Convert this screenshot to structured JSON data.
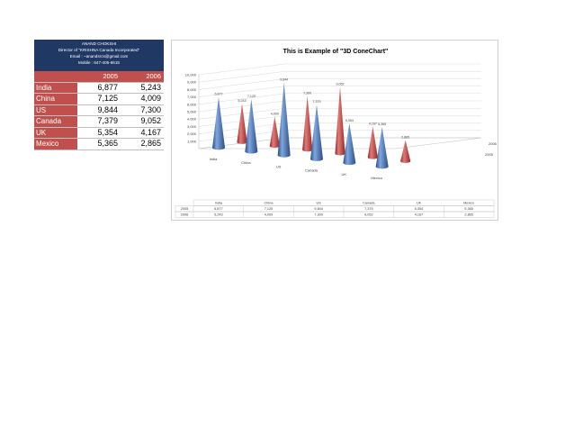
{
  "info": {
    "name": "ANAND CHOKSHI",
    "line2": "Director of \"KRISHNA Canada Incorporated\"",
    "line3": "Email : ~anandsrcs@gmail.com",
    "line4": "Mobile : 647-405-6615"
  },
  "table": {
    "headers": [
      "2005",
      "2006"
    ],
    "rows": [
      {
        "country": "India",
        "v2005": "6,877",
        "v2006": "5,243"
      },
      {
        "country": "China",
        "v2005": "7,125",
        "v2006": "4,009"
      },
      {
        "country": "US",
        "v2005": "9,844",
        "v2006": "7,300"
      },
      {
        "country": "Canada",
        "v2005": "7,379",
        "v2006": "9,052"
      },
      {
        "country": "UK",
        "v2005": "5,354",
        "v2006": "4,167"
      },
      {
        "country": "Mexico",
        "v2005": "5,365",
        "v2006": "2,865"
      }
    ]
  },
  "colors": {
    "series_2005": "#4f81bd",
    "series_2006": "#c0504d",
    "header_bg": "#c0504d",
    "info_bg": "#1f3864"
  },
  "chart_data": {
    "type": "bar",
    "subtype": "3d-cone",
    "title": "This is Example of \"3D ConeChart\"",
    "categories": [
      "India",
      "China",
      "US",
      "Canada",
      "UK",
      "Mexico"
    ],
    "series": [
      {
        "name": "2005",
        "values": [
          6877,
          7125,
          9844,
          7379,
          5354,
          5365
        ],
        "labels": [
          "6,877",
          "7,125",
          "9,844",
          "7,379",
          "5,354",
          "5,365"
        ]
      },
      {
        "name": "2006",
        "values": [
          5243,
          4009,
          7300,
          9052,
          4167,
          2865
        ],
        "labels": [
          "5,243",
          "4,009",
          "7,300",
          "9,052",
          "4,167",
          "2,865"
        ]
      }
    ],
    "ylim": [
      0,
      10000
    ],
    "yticks": [
      "1,000",
      "2,000",
      "3,000",
      "4,000",
      "5,000",
      "6,000",
      "7,000",
      "8,000",
      "9,000",
      "10,000"
    ],
    "depth_labels": [
      "2005",
      "2006"
    ],
    "grid": true,
    "legend": "data-table-below"
  }
}
